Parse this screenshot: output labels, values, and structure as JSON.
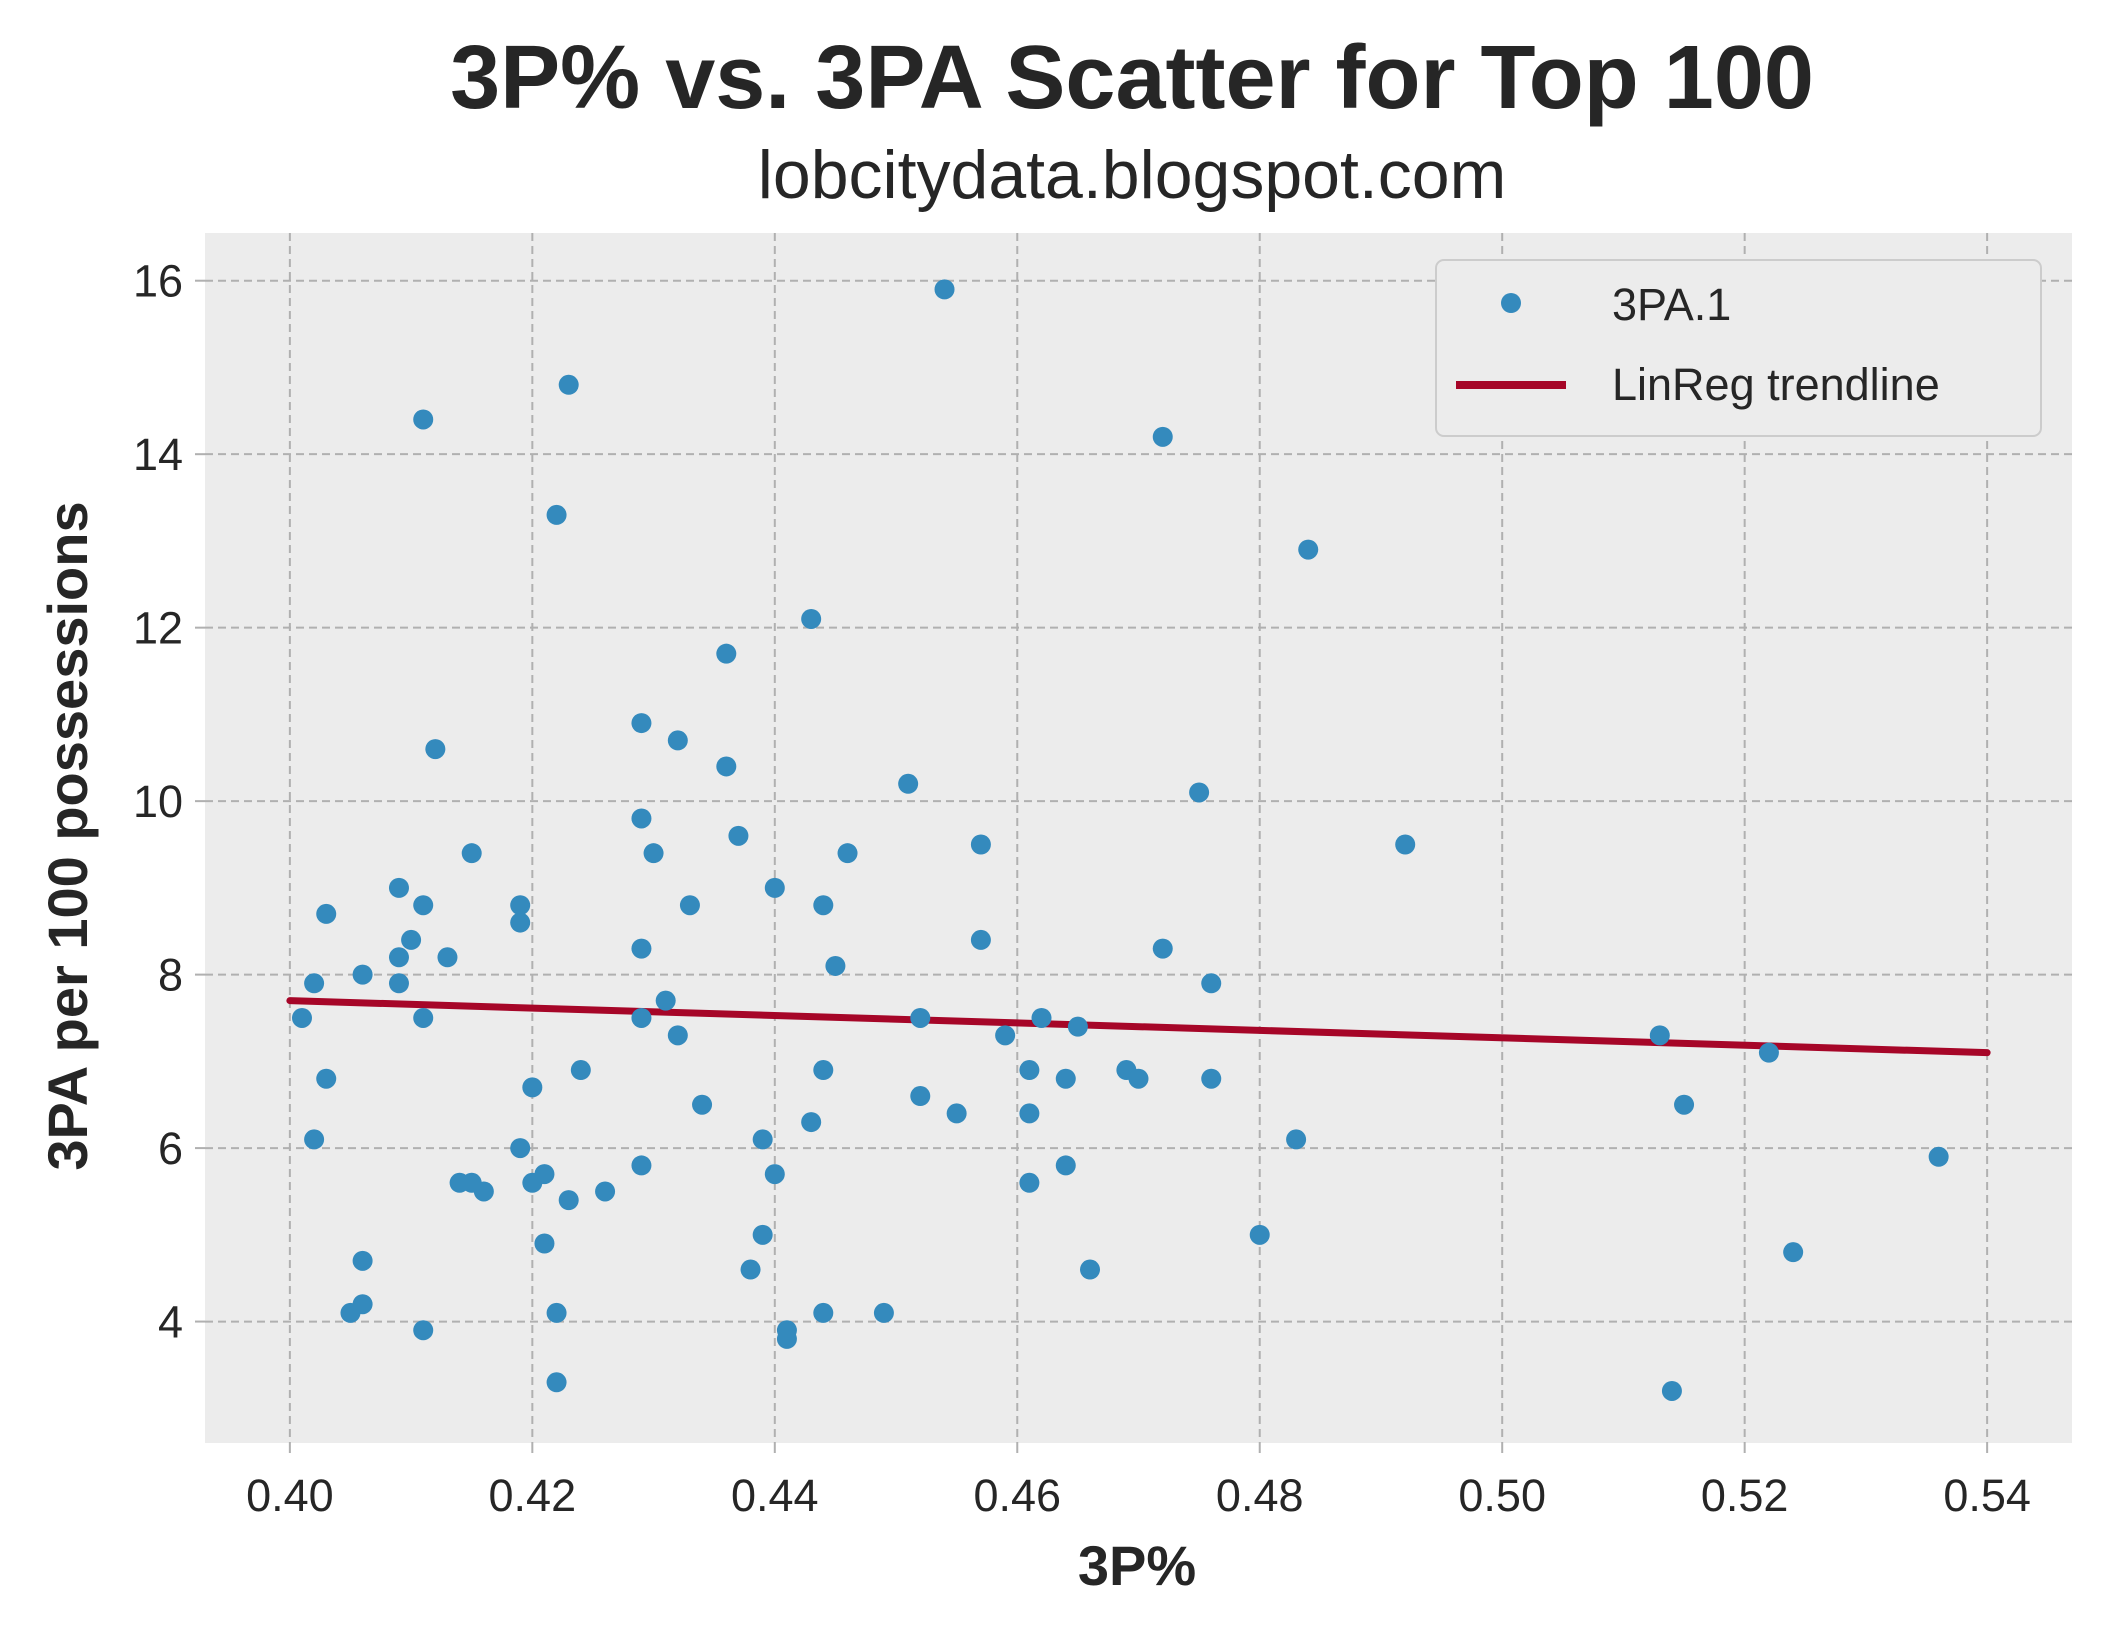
{
  "colors": {
    "background": "#ffffff",
    "plot_background": "#ececec",
    "grid": "#b0b0b0",
    "points": "#348abd",
    "trendline": "#a60628",
    "text": "#262626"
  },
  "chart_data": {
    "type": "scatter",
    "title": "3P% vs. 3PA Scatter for Top 100",
    "subtitle": "lobcitydata.blogspot.com",
    "xlabel": "3P%",
    "ylabel": "3PA per 100 possessions",
    "xlim": [
      0.393,
      0.547
    ],
    "ylim": [
      2.6,
      16.55
    ],
    "xticks": [
      0.4,
      0.42,
      0.44,
      0.46,
      0.48,
      0.5,
      0.52,
      0.54
    ],
    "xtick_labels": [
      "0.40",
      "0.42",
      "0.44",
      "0.46",
      "0.48",
      "0.50",
      "0.52",
      "0.54"
    ],
    "yticks": [
      4,
      6,
      8,
      10,
      12,
      14,
      16
    ],
    "ytick_labels": [
      "4",
      "6",
      "8",
      "10",
      "12",
      "14",
      "16"
    ],
    "grid": true,
    "legend_position": "top-right",
    "series": [
      {
        "name": "3PA.1",
        "kind": "scatter",
        "points": [
          [
            0.401,
            7.5
          ],
          [
            0.402,
            7.9
          ],
          [
            0.402,
            6.1
          ],
          [
            0.403,
            8.7
          ],
          [
            0.403,
            6.8
          ],
          [
            0.405,
            4.1
          ],
          [
            0.406,
            8.0
          ],
          [
            0.406,
            4.7
          ],
          [
            0.406,
            4.2
          ],
          [
            0.409,
            9.0
          ],
          [
            0.409,
            8.2
          ],
          [
            0.409,
            7.9
          ],
          [
            0.41,
            8.4
          ],
          [
            0.411,
            14.4
          ],
          [
            0.411,
            8.8
          ],
          [
            0.411,
            7.5
          ],
          [
            0.411,
            3.9
          ],
          [
            0.412,
            10.6
          ],
          [
            0.413,
            8.2
          ],
          [
            0.414,
            5.6
          ],
          [
            0.415,
            5.6
          ],
          [
            0.415,
            9.4
          ],
          [
            0.416,
            5.5
          ],
          [
            0.419,
            8.8
          ],
          [
            0.419,
            8.6
          ],
          [
            0.419,
            6.0
          ],
          [
            0.42,
            6.7
          ],
          [
            0.42,
            5.6
          ],
          [
            0.421,
            5.7
          ],
          [
            0.421,
            4.9
          ],
          [
            0.422,
            13.3
          ],
          [
            0.422,
            4.1
          ],
          [
            0.422,
            3.3
          ],
          [
            0.423,
            14.8
          ],
          [
            0.423,
            5.4
          ],
          [
            0.424,
            6.9
          ],
          [
            0.426,
            5.5
          ],
          [
            0.429,
            10.9
          ],
          [
            0.429,
            9.8
          ],
          [
            0.429,
            8.3
          ],
          [
            0.429,
            7.5
          ],
          [
            0.429,
            5.8
          ],
          [
            0.43,
            9.4
          ],
          [
            0.431,
            7.7
          ],
          [
            0.432,
            10.7
          ],
          [
            0.432,
            7.3
          ],
          [
            0.433,
            8.8
          ],
          [
            0.434,
            6.5
          ],
          [
            0.436,
            11.7
          ],
          [
            0.436,
            10.4
          ],
          [
            0.437,
            9.6
          ],
          [
            0.438,
            4.6
          ],
          [
            0.439,
            6.1
          ],
          [
            0.439,
            5.0
          ],
          [
            0.44,
            9.0
          ],
          [
            0.44,
            5.7
          ],
          [
            0.441,
            3.9
          ],
          [
            0.441,
            3.8
          ],
          [
            0.443,
            12.1
          ],
          [
            0.443,
            6.3
          ],
          [
            0.444,
            8.8
          ],
          [
            0.444,
            6.9
          ],
          [
            0.444,
            4.1
          ],
          [
            0.445,
            8.1
          ],
          [
            0.446,
            9.4
          ],
          [
            0.449,
            4.1
          ],
          [
            0.451,
            10.2
          ],
          [
            0.452,
            7.5
          ],
          [
            0.452,
            6.6
          ],
          [
            0.454,
            15.9
          ],
          [
            0.455,
            6.4
          ],
          [
            0.457,
            9.5
          ],
          [
            0.457,
            8.4
          ],
          [
            0.459,
            7.3
          ],
          [
            0.461,
            6.9
          ],
          [
            0.461,
            6.4
          ],
          [
            0.461,
            5.6
          ],
          [
            0.462,
            7.5
          ],
          [
            0.464,
            6.8
          ],
          [
            0.464,
            5.8
          ],
          [
            0.465,
            7.4
          ],
          [
            0.466,
            4.6
          ],
          [
            0.469,
            6.9
          ],
          [
            0.47,
            6.8
          ],
          [
            0.472,
            14.2
          ],
          [
            0.472,
            8.3
          ],
          [
            0.475,
            10.1
          ],
          [
            0.476,
            7.9
          ],
          [
            0.476,
            6.8
          ],
          [
            0.48,
            5.0
          ],
          [
            0.483,
            6.1
          ],
          [
            0.484,
            12.9
          ],
          [
            0.492,
            9.5
          ],
          [
            0.513,
            7.3
          ],
          [
            0.514,
            3.2
          ],
          [
            0.515,
            6.5
          ],
          [
            0.522,
            7.1
          ],
          [
            0.524,
            4.8
          ],
          [
            0.536,
            5.9
          ]
        ]
      },
      {
        "name": "LinReg trendline",
        "kind": "line",
        "points": [
          [
            0.4,
            7.7
          ],
          [
            0.54,
            7.1
          ]
        ]
      }
    ]
  }
}
